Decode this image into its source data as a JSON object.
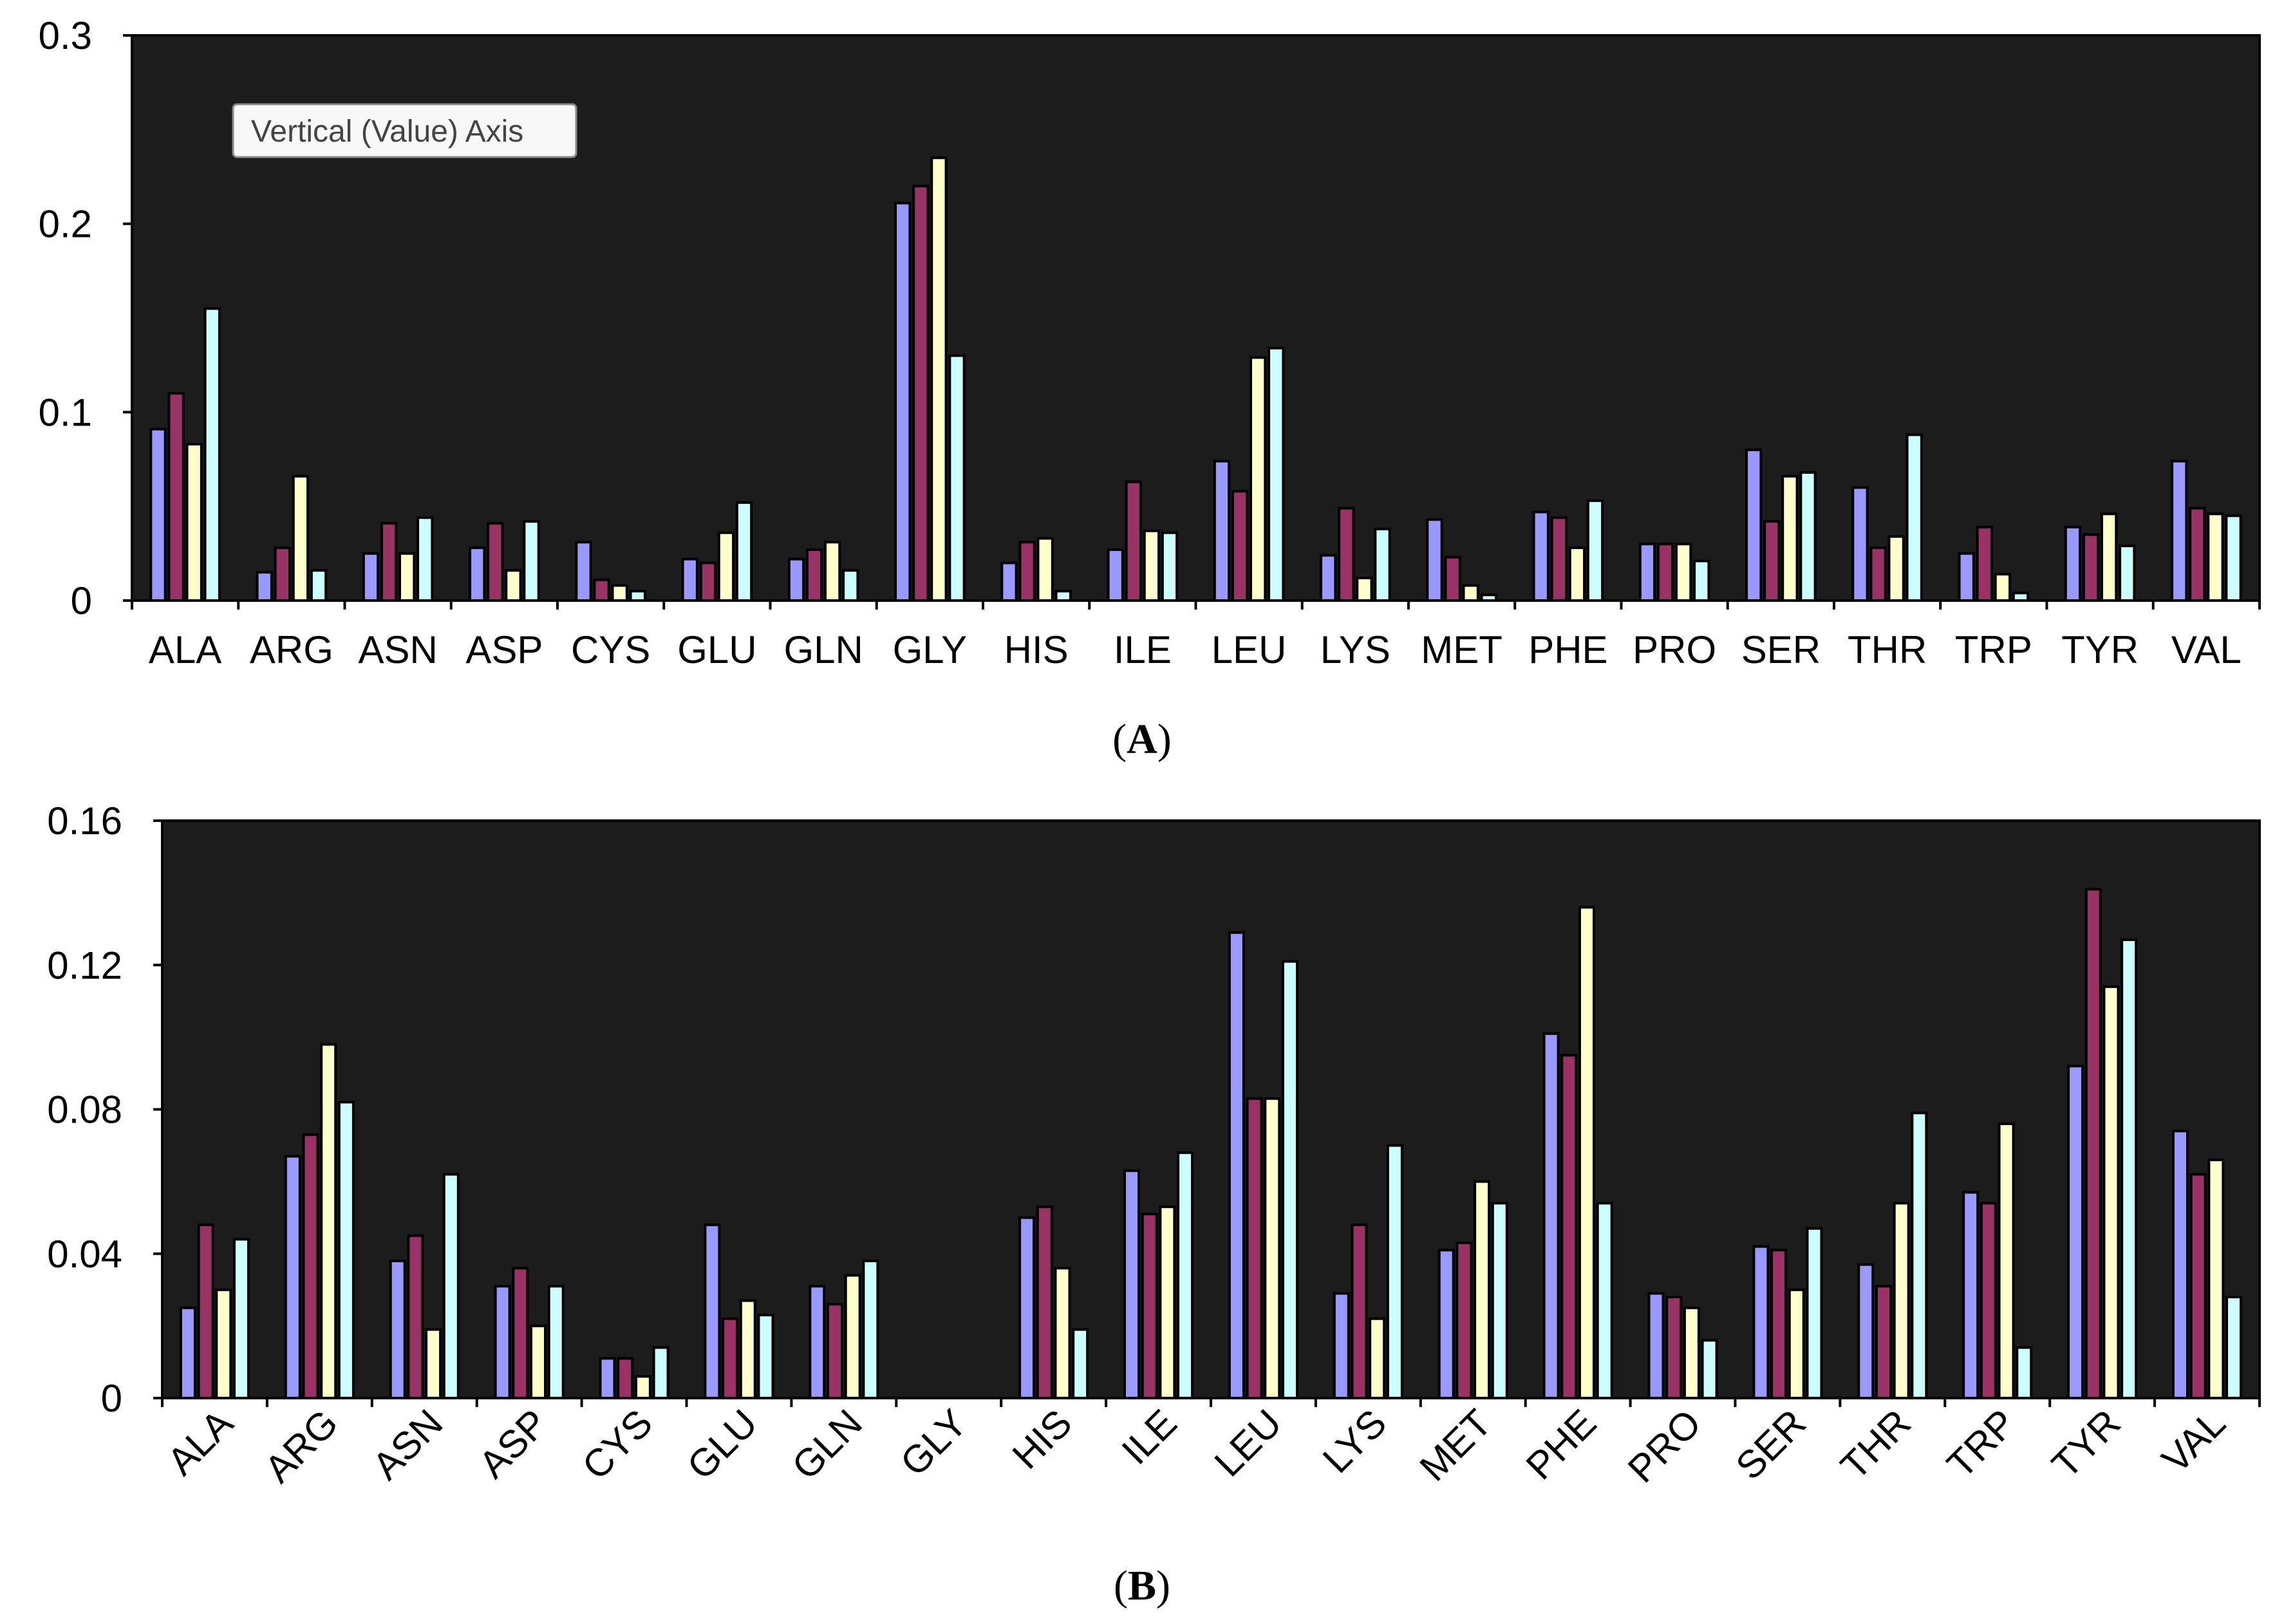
{
  "colors": {
    "series": [
      "#9999ff",
      "#993366",
      "#ffffcc",
      "#ccffff"
    ],
    "plot_background": "#1c1c1c",
    "bar_outline": "#000000"
  },
  "chart_data": [
    {
      "type": "bar",
      "panel_label": "A",
      "tooltip": "Vertical (Value) Axis",
      "categories": [
        "ALA",
        "ARG",
        "ASN",
        "ASP",
        "CYS",
        "GLU",
        "GLN",
        "GLY",
        "HIS",
        "ILE",
        "LEU",
        "LYS",
        "MET",
        "PHE",
        "PRO",
        "SER",
        "THR",
        "TRP",
        "TYR",
        "VAL"
      ],
      "ylim": [
        0,
        0.3
      ],
      "yticks": [
        0,
        0.1,
        0.2,
        0.3
      ],
      "ytick_labels": [
        "0",
        "0.1",
        "0.2",
        "0.3"
      ],
      "xtick_rotation": 0,
      "grid": false,
      "series": [
        {
          "name": "",
          "values": [
            0.091,
            0.015,
            0.025,
            0.028,
            0.031,
            0.022,
            0.022,
            0.211,
            0.02,
            0.027,
            0.074,
            0.024,
            0.043,
            0.047,
            0.03,
            0.08,
            0.06,
            0.025,
            0.039,
            0.074
          ]
        },
        {
          "name": "",
          "values": [
            0.11,
            0.028,
            0.041,
            0.041,
            0.011,
            0.02,
            0.027,
            0.22,
            0.031,
            0.063,
            0.058,
            0.049,
            0.023,
            0.044,
            0.03,
            0.042,
            0.028,
            0.039,
            0.035,
            0.049
          ]
        },
        {
          "name": "",
          "values": [
            0.083,
            0.066,
            0.025,
            0.016,
            0.008,
            0.036,
            0.031,
            0.235,
            0.033,
            0.037,
            0.129,
            0.012,
            0.008,
            0.028,
            0.03,
            0.066,
            0.034,
            0.014,
            0.046,
            0.046
          ]
        },
        {
          "name": "",
          "values": [
            0.155,
            0.016,
            0.044,
            0.042,
            0.005,
            0.052,
            0.016,
            0.13,
            0.005,
            0.036,
            0.134,
            0.038,
            0.003,
            0.053,
            0.021,
            0.068,
            0.088,
            0.004,
            0.029,
            0.045
          ]
        }
      ]
    },
    {
      "type": "bar",
      "panel_label": "B",
      "categories": [
        "ALA",
        "ARG",
        "ASN",
        "ASP",
        "CYS",
        "GLU",
        "GLN",
        "GLY",
        "HIS",
        "ILE",
        "LEU",
        "LYS",
        "MET",
        "PHE",
        "PRO",
        "SER",
        "THR",
        "TRP",
        "TYR",
        "VAL"
      ],
      "ylim": [
        0,
        0.16
      ],
      "yticks": [
        0,
        0.04,
        0.08,
        0.12,
        0.16
      ],
      "ytick_labels": [
        "0",
        "0.04",
        "0.08",
        "0.12",
        "0.16"
      ],
      "xtick_rotation": -45,
      "grid": false,
      "series": [
        {
          "name": "",
          "values": [
            0.025,
            0.067,
            0.038,
            0.031,
            0.011,
            0.048,
            0.031,
            0.0,
            0.05,
            0.063,
            0.129,
            0.029,
            0.041,
            0.101,
            0.029,
            0.042,
            0.037,
            0.057,
            0.092,
            0.074
          ]
        },
        {
          "name": "",
          "values": [
            0.048,
            0.073,
            0.045,
            0.036,
            0.011,
            0.022,
            0.026,
            0.0,
            0.053,
            0.051,
            0.083,
            0.048,
            0.043,
            0.095,
            0.028,
            0.041,
            0.031,
            0.054,
            0.141,
            0.062
          ]
        },
        {
          "name": "",
          "values": [
            0.03,
            0.098,
            0.019,
            0.02,
            0.006,
            0.027,
            0.034,
            0.0,
            0.036,
            0.053,
            0.083,
            0.022,
            0.06,
            0.136,
            0.025,
            0.03,
            0.054,
            0.076,
            0.114,
            0.066
          ]
        },
        {
          "name": "",
          "values": [
            0.044,
            0.082,
            0.062,
            0.031,
            0.014,
            0.023,
            0.038,
            0.0,
            0.019,
            0.068,
            0.121,
            0.07,
            0.054,
            0.054,
            0.016,
            0.047,
            0.079,
            0.014,
            0.127,
            0.028
          ]
        }
      ]
    }
  ]
}
